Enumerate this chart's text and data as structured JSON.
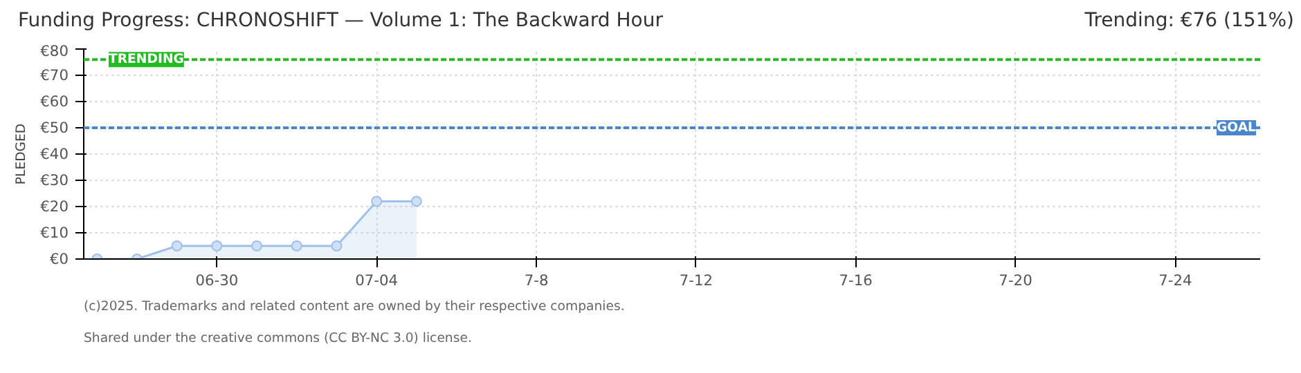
{
  "chart_data": {
    "type": "area",
    "title": "Funding Progress: CHRONOSHIFT — Volume 1: The Backward Hour",
    "subtitle": "Trending:  €76 (151%)",
    "ylabel": "PLEDGED",
    "x": [
      "2025-06-27",
      "2025-06-28",
      "2025-06-29",
      "2025-06-30",
      "2025-07-01",
      "2025-07-02",
      "2025-07-03",
      "2025-07-04",
      "2025-07-05"
    ],
    "series": [
      {
        "color": "#9fc0e8",
        "values": [
          0,
          0,
          5,
          5,
          5,
          5,
          5,
          22,
          22
        ]
      }
    ],
    "xlim": [
      "2025-06-26T16:00",
      "2025-07-26T03:00"
    ],
    "xticks": [
      {
        "value": "2025-06-30",
        "label": "06-30"
      },
      {
        "value": "2025-07-04",
        "label": "07-04"
      },
      {
        "value": "2025-07-08",
        "label": "7-8"
      },
      {
        "value": "2025-07-12",
        "label": "7-12"
      },
      {
        "value": "2025-07-16",
        "label": "7-16"
      },
      {
        "value": "2025-07-20",
        "label": "7-20"
      },
      {
        "value": "2025-07-24",
        "label": "7-24"
      }
    ],
    "ylim": [
      0,
      80
    ],
    "yticks": [
      {
        "value": 0,
        "label": "€0"
      },
      {
        "value": 10,
        "label": "€10"
      },
      {
        "value": 20,
        "label": "€20"
      },
      {
        "value": 30,
        "label": "€30"
      },
      {
        "value": 40,
        "label": "€40"
      },
      {
        "value": 50,
        "label": "€50"
      },
      {
        "value": 60,
        "label": "€60"
      },
      {
        "value": 70,
        "label": "€70"
      },
      {
        "value": 80,
        "label": "€80"
      }
    ],
    "ref_lines": [
      {
        "axis": "y",
        "value": 76,
        "label": "TRENDING",
        "color": "#22bb22",
        "line_style": "dashed"
      },
      {
        "axis": "y",
        "value": 50,
        "label": "GOAL",
        "color": "#4a86cc",
        "line_style": "dashed"
      }
    ],
    "grid": true,
    "marker": "circle",
    "annotations": [
      "(c)2025. Trademarks and related content are owned by their respective companies.",
      "Shared under the creative commons (CC BY-NC 3.0) license."
    ]
  }
}
